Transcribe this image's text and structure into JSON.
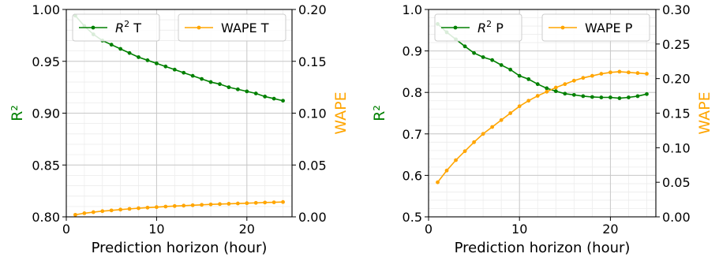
{
  "chart_data": [
    {
      "type": "line",
      "title": "",
      "xlabel": "Prediction horizon (hour)",
      "ylabel_left": "R²",
      "ylabel_right": "WAPE",
      "xlim": [
        0,
        25
      ],
      "ylim_left": [
        0.8,
        1.0
      ],
      "ylim_right": [
        0.0,
        0.2
      ],
      "xticks": [
        "0",
        "10",
        "20"
      ],
      "yticks_left": [
        "0.80",
        "0.85",
        "0.90",
        "0.95",
        "1.00"
      ],
      "yticks_right": [
        "0.00",
        "0.05",
        "0.10",
        "0.15",
        "0.20"
      ],
      "grid": true,
      "x": [
        1,
        2,
        3,
        4,
        5,
        6,
        7,
        8,
        9,
        10,
        11,
        12,
        13,
        14,
        15,
        16,
        17,
        18,
        19,
        20,
        21,
        22,
        23,
        24
      ],
      "series": [
        {
          "name": "R² T",
          "axis": "left",
          "color": "#008000",
          "values": [
            0.994,
            0.984,
            0.976,
            0.97,
            0.966,
            0.962,
            0.958,
            0.954,
            0.951,
            0.948,
            0.945,
            0.942,
            0.939,
            0.936,
            0.933,
            0.93,
            0.928,
            0.925,
            0.923,
            0.921,
            0.919,
            0.916,
            0.914,
            0.912
          ]
        },
        {
          "name": "WAPE T",
          "axis": "right",
          "color": "#FFA500",
          "values": [
            0.002,
            0.0035,
            0.0045,
            0.0055,
            0.0062,
            0.007,
            0.0077,
            0.0083,
            0.0089,
            0.0094,
            0.0099,
            0.0104,
            0.0108,
            0.0112,
            0.0116,
            0.012,
            0.0123,
            0.0126,
            0.0129,
            0.0132,
            0.0135,
            0.0138,
            0.014,
            0.0143
          ]
        }
      ],
      "legend": [
        {
          "label": "R",
          "sup": "2",
          "suffix": " T",
          "color": "#008000"
        },
        {
          "label": "WAPE T",
          "sup": "",
          "suffix": "",
          "color": "#FFA500"
        }
      ],
      "legend_placement": "top"
    },
    {
      "type": "line",
      "title": "",
      "xlabel": "Prediction horizon (hour)",
      "ylabel_left": "R²",
      "ylabel_right": "WAPE",
      "xlim": [
        0,
        25
      ],
      "ylim_left": [
        0.5,
        1.0
      ],
      "ylim_right": [
        0.0,
        0.3
      ],
      "xticks": [
        "0",
        "10",
        "20"
      ],
      "yticks_left": [
        "0.5",
        "0.6",
        "0.7",
        "0.8",
        "0.9",
        "1.0"
      ],
      "yticks_right": [
        "0.00",
        "0.05",
        "0.10",
        "0.15",
        "0.20",
        "0.25",
        "0.30"
      ],
      "grid": true,
      "x": [
        1,
        2,
        3,
        4,
        5,
        6,
        7,
        8,
        9,
        10,
        11,
        12,
        13,
        14,
        15,
        16,
        17,
        18,
        19,
        20,
        21,
        22,
        23,
        24
      ],
      "series": [
        {
          "name": "R² P",
          "axis": "left",
          "color": "#008000",
          "values": [
            0.965,
            0.945,
            0.928,
            0.911,
            0.895,
            0.885,
            0.878,
            0.866,
            0.855,
            0.84,
            0.832,
            0.82,
            0.81,
            0.803,
            0.797,
            0.794,
            0.791,
            0.789,
            0.788,
            0.788,
            0.786,
            0.788,
            0.791,
            0.796
          ]
        },
        {
          "name": "WAPE P",
          "axis": "right",
          "color": "#FFA500",
          "values": [
            0.05,
            0.067,
            0.082,
            0.095,
            0.108,
            0.12,
            0.13,
            0.14,
            0.15,
            0.16,
            0.168,
            0.175,
            0.181,
            0.187,
            0.192,
            0.197,
            0.201,
            0.204,
            0.207,
            0.209,
            0.21,
            0.209,
            0.208,
            0.207
          ]
        }
      ],
      "legend": [
        {
          "label": "R",
          "sup": "2",
          "suffix": " P",
          "color": "#008000"
        },
        {
          "label": "WAPE P",
          "sup": "",
          "suffix": "",
          "color": "#FFA500"
        }
      ],
      "legend_placement": "top"
    }
  ]
}
